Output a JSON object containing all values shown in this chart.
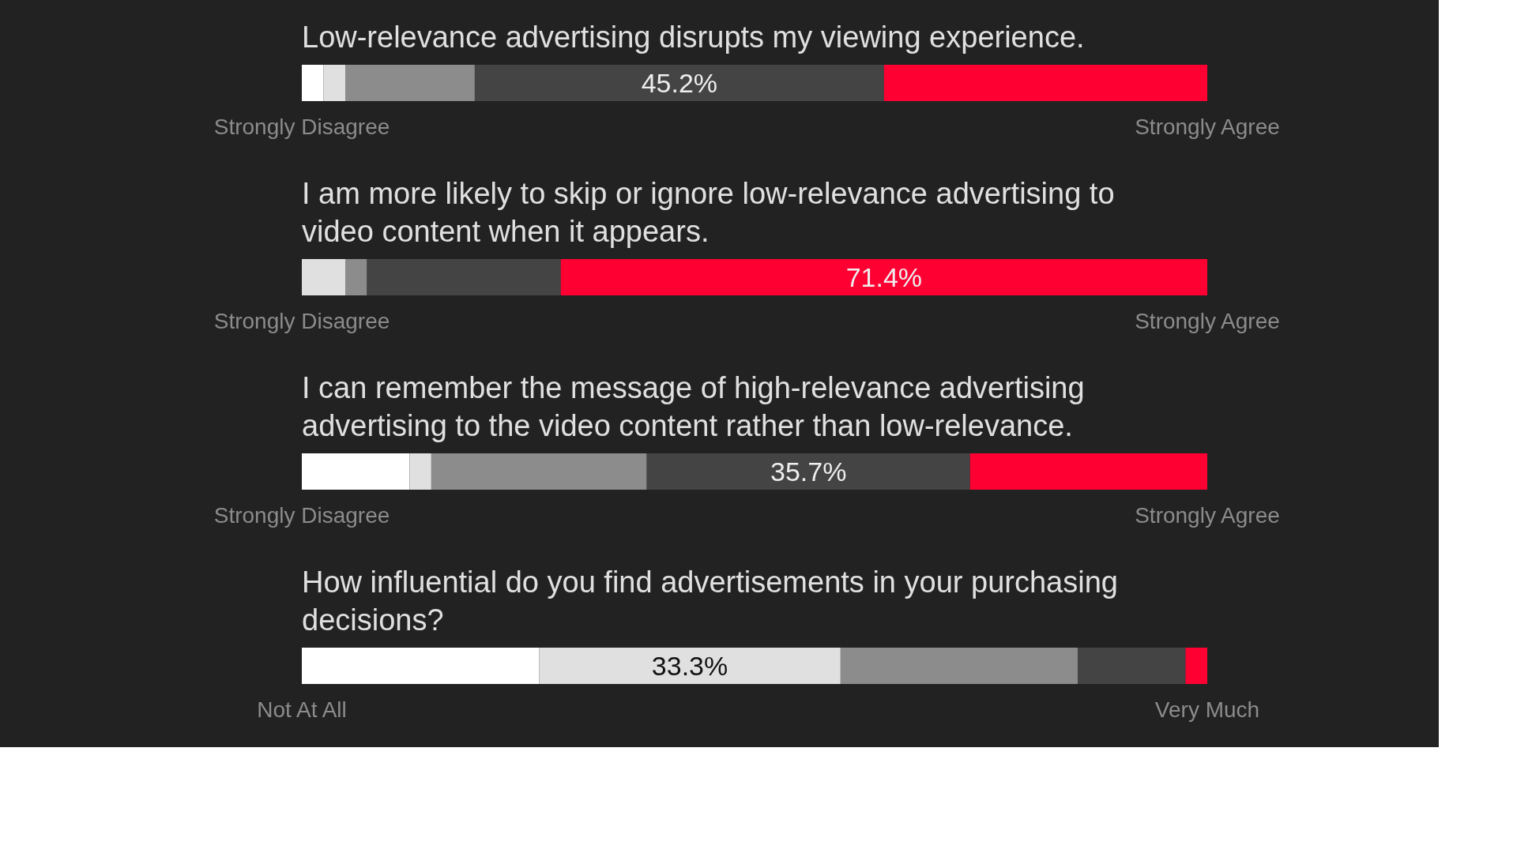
{
  "chart_data": [
    {
      "type": "bar",
      "stacked": true,
      "orientation": "horizontal",
      "xlim": [
        0,
        100
      ],
      "tick_labels": false,
      "title": "Low-relevance advertising disrupts my viewing experience.",
      "categories": [
        null
      ],
      "series": [
        {
          "color": "#ffffff",
          "values": [
            2.4
          ]
        },
        {
          "color": "#e0e0e0",
          "values": [
            2.4
          ]
        },
        {
          "color": "#8c8c8c",
          "values": [
            14.3
          ]
        },
        {
          "color": "#444444",
          "values": [
            45.2
          ],
          "value_labels": [
            "45.2%"
          ]
        },
        {
          "color": "#ff0033",
          "values": [
            35.7
          ]
        }
      ],
      "annotations": [
        "Strongly Disagree",
        "Strongly Agree"
      ]
    },
    {
      "type": "bar",
      "stacked": true,
      "orientation": "horizontal",
      "xlim": [
        0,
        100
      ],
      "tick_labels": false,
      "title": "I am more likely to skip or ignore low-relevance advertising to video content when it appears.",
      "categories": [
        null
      ],
      "series": [
        {
          "color": "#e0e0e0",
          "values": [
            4.8
          ]
        },
        {
          "color": "#8c8c8c",
          "values": [
            2.4
          ]
        },
        {
          "color": "#444444",
          "values": [
            21.4
          ]
        },
        {
          "color": "#ff0033",
          "values": [
            71.4
          ],
          "value_labels": [
            "71.4%"
          ]
        }
      ],
      "annotations": [
        "Strongly Disagree",
        "Strongly Agree"
      ]
    },
    {
      "type": "bar",
      "stacked": true,
      "orientation": "horizontal",
      "xlim": [
        0,
        100
      ],
      "tick_labels": false,
      "title": "I can remember the message of high-relevance advertising advertising to the video content rather than low-relevance.",
      "categories": [
        null
      ],
      "series": [
        {
          "color": "#ffffff",
          "values": [
            11.9
          ]
        },
        {
          "color": "#e0e0e0",
          "values": [
            2.4
          ]
        },
        {
          "color": "#8c8c8c",
          "values": [
            23.8
          ]
        },
        {
          "color": "#444444",
          "values": [
            35.7
          ],
          "value_labels": [
            "35.7%"
          ]
        },
        {
          "color": "#ff0033",
          "values": [
            26.2
          ]
        }
      ],
      "annotations": [
        "Strongly Disagree",
        "Strongly Agree"
      ]
    },
    {
      "type": "bar",
      "stacked": true,
      "orientation": "horizontal",
      "xlim": [
        0,
        100
      ],
      "tick_labels": false,
      "title": "How influential do you find advertisements in your purchasing decisions?",
      "categories": [
        null
      ],
      "series": [
        {
          "color": "#ffffff",
          "values": [
            26.2
          ]
        },
        {
          "color": "#e0e0e0",
          "values": [
            33.3
          ],
          "value_labels": [
            "33.3%"
          ]
        },
        {
          "color": "#8c8c8c",
          "values": [
            26.2
          ]
        },
        {
          "color": "#444444",
          "values": [
            11.9
          ]
        },
        {
          "color": "#ff0033",
          "values": [
            2.4
          ]
        }
      ],
      "annotations": [
        "Not At All",
        "Very Much"
      ]
    }
  ]
}
